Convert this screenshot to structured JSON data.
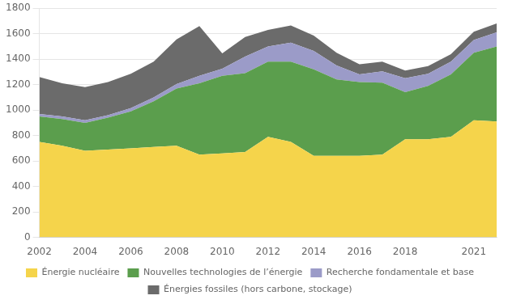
{
  "chart_data": {
    "type": "area",
    "stacked": true,
    "x": [
      2002,
      2003,
      2004,
      2005,
      2006,
      2007,
      2008,
      2009,
      2010,
      2011,
      2012,
      2013,
      2014,
      2015,
      2016,
      2017,
      2018,
      2019,
      2020,
      2021,
      2022
    ],
    "series": [
      {
        "name": "Énergie nucléaire",
        "color": "#F5D44B",
        "values": [
          750,
          720,
          680,
          690,
          700,
          710,
          720,
          650,
          660,
          670,
          790,
          750,
          640,
          640,
          640,
          650,
          770,
          770,
          790,
          920,
          910
        ]
      },
      {
        "name": "Nouvelles technologies de l’énergie",
        "color": "#5B9E4D",
        "values": [
          200,
          210,
          220,
          250,
          290,
          360,
          450,
          560,
          610,
          620,
          590,
          630,
          680,
          600,
          580,
          565,
          370,
          420,
          490,
          530,
          590
        ]
      },
      {
        "name": "Recherche fondamentale et base",
        "color": "#9B9BC8",
        "values": [
          20,
          20,
          20,
          20,
          25,
          30,
          35,
          60,
          55,
          130,
          120,
          150,
          145,
          110,
          60,
          90,
          110,
          95,
          100,
          100,
          110
        ]
      },
      {
        "name": "Énergies fossiles (hors carbone, stockage)",
        "color": "#6B6B6B",
        "values": [
          290,
          260,
          260,
          260,
          270,
          280,
          350,
          390,
          120,
          155,
          130,
          135,
          120,
          100,
          80,
          75,
          60,
          60,
          60,
          65,
          70
        ]
      }
    ],
    "xlim": [
      2002,
      2022
    ],
    "xticks": [
      2002,
      2004,
      2006,
      2008,
      2010,
      2012,
      2014,
      2016,
      2018,
      2021
    ],
    "ylim": [
      0,
      1800
    ],
    "yticks": [
      0,
      200,
      400,
      600,
      800,
      1000,
      1200,
      1400,
      1600,
      1800
    ],
    "grid": "y",
    "legend": "bottom"
  }
}
